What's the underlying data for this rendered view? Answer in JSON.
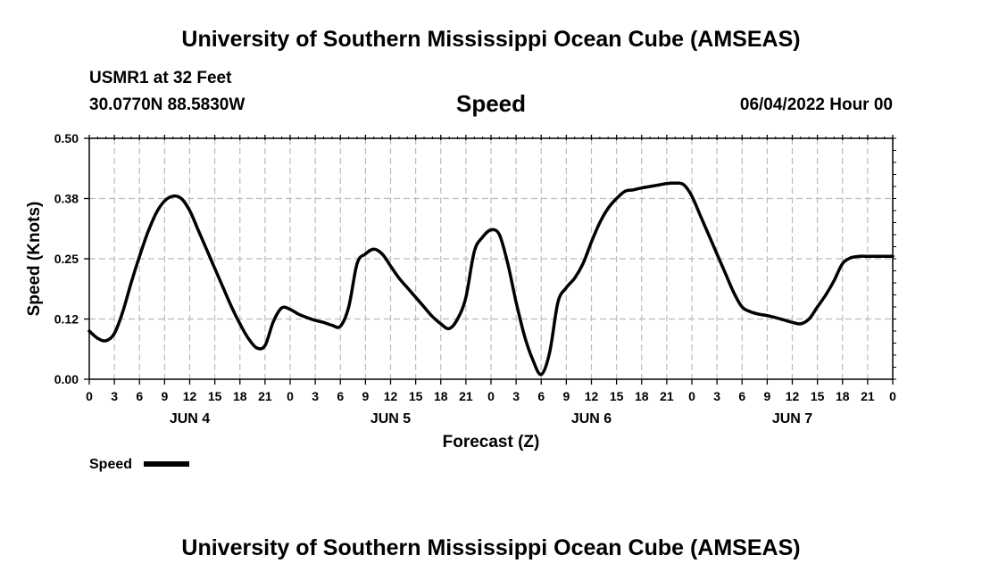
{
  "header": {
    "title": "University of Southern Mississippi Ocean Cube (AMSEAS)",
    "station": "USMR1 at 32 Feet",
    "location": "30.0770N  88.5830W",
    "chart_name": "Speed",
    "date": "06/04/2022 Hour 00"
  },
  "footer": {
    "title": "University of Southern Mississippi Ocean Cube (AMSEAS)"
  },
  "legend": {
    "label": "Speed"
  },
  "colors": {
    "line": "#000000",
    "grid": "#bbbbbb",
    "background": "#ffffff"
  },
  "chart_data": {
    "type": "line",
    "title": "Speed",
    "xlabel": "Forecast (Z)",
    "ylabel": "Speed (Knots)",
    "xlim": [
      0,
      96
    ],
    "ylim": [
      0,
      0.5
    ],
    "yticks": [
      "0.00",
      "0.12",
      "0.25",
      "0.38",
      "0.50"
    ],
    "ytick_values": [
      0,
      0.125,
      0.25,
      0.375,
      0.5
    ],
    "xtick_labels": [
      "0",
      "3",
      "6",
      "9",
      "12",
      "15",
      "18",
      "21",
      "0",
      "3",
      "6",
      "9",
      "12",
      "15",
      "18",
      "21",
      "0",
      "3",
      "6",
      "9",
      "12",
      "15",
      "18",
      "21",
      "0",
      "3",
      "6",
      "9",
      "12",
      "15",
      "18",
      "21",
      "0"
    ],
    "day_labels": [
      {
        "label": "JUN 4",
        "hour": 12
      },
      {
        "label": "JUN 5",
        "hour": 36
      },
      {
        "label": "JUN 6",
        "hour": 60
      },
      {
        "label": "JUN 7",
        "hour": 84
      }
    ],
    "grid": true,
    "legend_position": "bottom-left",
    "series": [
      {
        "name": "Speed",
        "x": [
          0,
          1,
          2,
          3,
          4,
          5,
          6,
          7,
          8,
          9,
          10,
          11,
          12,
          13,
          14,
          15,
          16,
          17,
          18,
          19,
          20,
          21,
          22,
          23,
          24,
          25,
          26,
          27,
          28,
          29,
          30,
          31,
          32,
          33,
          34,
          35,
          36,
          37,
          38,
          39,
          40,
          41,
          42,
          43,
          44,
          45,
          46,
          47,
          48,
          49,
          50,
          51,
          52,
          53,
          54,
          55,
          56,
          57,
          58,
          59,
          60,
          61,
          62,
          63,
          64,
          65,
          66,
          67,
          68,
          69,
          70,
          71,
          72,
          73,
          74,
          75,
          76,
          77,
          78,
          79,
          80,
          81,
          82,
          83,
          84,
          85,
          86,
          87,
          88,
          89,
          90,
          91,
          92,
          93,
          94,
          95,
          96
        ],
        "values": [
          0.1,
          0.085,
          0.08,
          0.095,
          0.14,
          0.2,
          0.255,
          0.305,
          0.345,
          0.37,
          0.38,
          0.375,
          0.35,
          0.31,
          0.27,
          0.23,
          0.19,
          0.15,
          0.115,
          0.085,
          0.065,
          0.07,
          0.12,
          0.148,
          0.145,
          0.135,
          0.128,
          0.122,
          0.118,
          0.112,
          0.11,
          0.15,
          0.24,
          0.26,
          0.27,
          0.26,
          0.235,
          0.21,
          0.19,
          0.17,
          0.15,
          0.13,
          0.115,
          0.105,
          0.125,
          0.17,
          0.265,
          0.295,
          0.31,
          0.3,
          0.24,
          0.16,
          0.09,
          0.04,
          0.01,
          0.055,
          0.16,
          0.19,
          0.21,
          0.24,
          0.285,
          0.325,
          0.355,
          0.375,
          0.39,
          0.393,
          0.397,
          0.4,
          0.403,
          0.406,
          0.407,
          0.404,
          0.38,
          0.34,
          0.3,
          0.26,
          0.22,
          0.18,
          0.15,
          0.14,
          0.135,
          0.132,
          0.128,
          0.123,
          0.118,
          0.115,
          0.125,
          0.15,
          0.175,
          0.205,
          0.24,
          0.252,
          0.255,
          0.255,
          0.255,
          0.255,
          0.255
        ]
      }
    ]
  }
}
